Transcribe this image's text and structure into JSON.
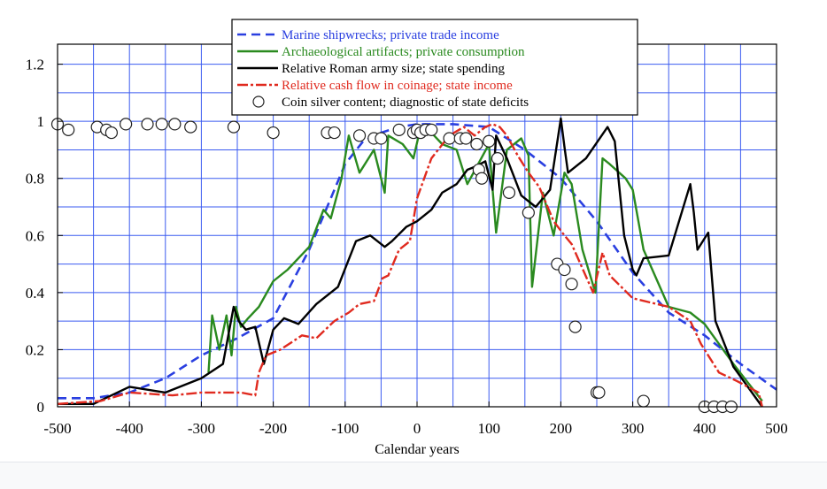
{
  "chart_data": {
    "type": "line",
    "xlabel": "Calendar years",
    "ylabel": "",
    "xlim": [
      -500,
      500
    ],
    "ylim": [
      0,
      1.27
    ],
    "x_ticks": [
      -500,
      -400,
      -300,
      -200,
      -100,
      0,
      100,
      200,
      300,
      400,
      500
    ],
    "x_tick_labels": [
      "-500",
      "-400",
      "-300",
      "-200",
      "-100",
      "0",
      "100",
      "200",
      "300",
      "400",
      "500"
    ],
    "y_ticks": [
      0,
      0.2,
      0.4,
      0.6,
      0.8,
      1,
      1.2
    ],
    "y_tick_labels": [
      "0",
      "0.2",
      "0.4",
      "0.6",
      "0.8",
      "1",
      "1.2"
    ],
    "grid": true,
    "legend_position": "top-center",
    "series": [
      {
        "name": "Marine shipwrecks; private trade income",
        "style": "dashed",
        "color": "#2a3fe0",
        "x": [
          -500,
          -450,
          -400,
          -350,
          -300,
          -250,
          -200,
          -150,
          -125,
          -100,
          -75,
          -50,
          -25,
          0,
          25,
          50,
          100,
          150,
          200,
          250,
          300,
          350,
          400,
          450,
          500
        ],
        "y": [
          0.03,
          0.03,
          0.05,
          0.1,
          0.18,
          0.24,
          0.31,
          0.55,
          0.7,
          0.85,
          0.93,
          0.96,
          0.98,
          0.99,
          0.99,
          0.99,
          0.98,
          0.9,
          0.8,
          0.65,
          0.47,
          0.33,
          0.25,
          0.15,
          0.06
        ]
      },
      {
        "name": "Archaeological artifacts; private consumption",
        "style": "solid",
        "color": "#2a8a1f",
        "x": [
          -290,
          -285,
          -275,
          -265,
          -258,
          -252,
          -245,
          -235,
          -220,
          -200,
          -180,
          -150,
          -130,
          -120,
          -105,
          -95,
          -80,
          -60,
          -45,
          -40,
          -20,
          -5,
          5,
          20,
          35,
          55,
          70,
          100,
          110,
          125,
          145,
          155,
          160,
          175,
          190,
          205,
          215,
          230,
          248,
          258,
          268,
          290,
          300,
          315,
          350,
          380,
          400,
          440,
          480
        ],
        "y": [
          0.12,
          0.32,
          0.2,
          0.32,
          0.18,
          0.35,
          0.28,
          0.31,
          0.35,
          0.44,
          0.48,
          0.56,
          0.69,
          0.66,
          0.8,
          0.95,
          0.82,
          0.9,
          0.75,
          0.95,
          0.92,
          0.87,
          0.98,
          0.96,
          0.92,
          0.9,
          0.78,
          0.92,
          0.61,
          0.9,
          0.94,
          0.88,
          0.42,
          0.75,
          0.6,
          0.82,
          0.78,
          0.55,
          0.4,
          0.87,
          0.85,
          0.8,
          0.76,
          0.55,
          0.35,
          0.33,
          0.29,
          0.15,
          0.02
        ]
      },
      {
        "name": "Relative Roman army size; state spending",
        "style": "solid",
        "color": "#000000",
        "x": [
          -500,
          -450,
          -400,
          -350,
          -300,
          -270,
          -255,
          -248,
          -238,
          -225,
          -213,
          -200,
          -185,
          -165,
          -140,
          -110,
          -85,
          -65,
          -45,
          -35,
          -15,
          0,
          20,
          35,
          55,
          70,
          80,
          95,
          105,
          110,
          125,
          145,
          165,
          185,
          200,
          205,
          210,
          235,
          265,
          275,
          288,
          300,
          305,
          315,
          350,
          380,
          385,
          390,
          400,
          405,
          415,
          440,
          480
        ],
        "y": [
          0.01,
          0.01,
          0.07,
          0.05,
          0.1,
          0.15,
          0.35,
          0.3,
          0.27,
          0.28,
          0.15,
          0.27,
          0.31,
          0.29,
          0.36,
          0.42,
          0.58,
          0.6,
          0.56,
          0.58,
          0.63,
          0.65,
          0.69,
          0.75,
          0.78,
          0.83,
          0.84,
          0.86,
          0.76,
          0.95,
          0.87,
          0.74,
          0.7,
          0.76,
          1.01,
          0.91,
          0.82,
          0.87,
          0.98,
          0.93,
          0.6,
          0.48,
          0.46,
          0.52,
          0.53,
          0.78,
          0.68,
          0.55,
          0.59,
          0.61,
          0.3,
          0.14,
          0.0
        ]
      },
      {
        "name": "Relative cash flow in coinage; state income",
        "style": "dash-dot",
        "color": "#e02a1f",
        "x": [
          -500,
          -440,
          -400,
          -340,
          -300,
          -270,
          -245,
          -225,
          -220,
          -210,
          -190,
          -160,
          -140,
          -115,
          -95,
          -80,
          -60,
          -48,
          -40,
          -25,
          -10,
          0,
          20,
          45,
          65,
          80,
          95,
          105,
          115,
          125,
          140,
          155,
          170,
          190,
          205,
          215,
          245,
          258,
          268,
          280,
          300,
          350,
          380,
          395,
          420,
          445,
          475,
          480
        ],
        "y": [
          0.01,
          0.02,
          0.05,
          0.04,
          0.05,
          0.05,
          0.05,
          0.04,
          0.12,
          0.18,
          0.2,
          0.25,
          0.24,
          0.3,
          0.33,
          0.36,
          0.37,
          0.45,
          0.46,
          0.55,
          0.58,
          0.73,
          0.87,
          0.95,
          0.98,
          0.95,
          0.98,
          0.99,
          0.98,
          0.95,
          0.88,
          0.82,
          0.77,
          0.65,
          0.6,
          0.57,
          0.4,
          0.54,
          0.46,
          0.43,
          0.38,
          0.35,
          0.3,
          0.22,
          0.12,
          0.09,
          0.05,
          0.0
        ]
      }
    ],
    "points": {
      "name": "Coin silver content; diagnostic of state deficits",
      "marker": "open-circle",
      "x": [
        -500,
        -485,
        -445,
        -432,
        -425,
        -405,
        -375,
        -355,
        -337,
        -315,
        -255,
        -200,
        -125,
        -115,
        -80,
        -60,
        -50,
        -25,
        -5,
        0,
        5,
        12,
        20,
        45,
        60,
        68,
        83,
        86,
        90,
        100,
        112,
        128,
        155,
        195,
        205,
        215,
        220,
        250,
        253,
        315,
        400,
        413,
        425,
        437
      ],
      "y": [
        0.99,
        0.97,
        0.98,
        0.97,
        0.96,
        0.99,
        0.99,
        0.99,
        0.99,
        0.98,
        0.98,
        0.96,
        0.96,
        0.96,
        0.95,
        0.94,
        0.94,
        0.97,
        0.96,
        0.97,
        0.96,
        0.97,
        0.97,
        0.94,
        0.94,
        0.94,
        0.92,
        0.83,
        0.8,
        0.93,
        0.87,
        0.75,
        0.68,
        0.5,
        0.48,
        0.43,
        0.28,
        0.05,
        0.05,
        0.02,
        0.0,
        0.0,
        0.0,
        0.0
      ]
    },
    "colors": {
      "grid": "#3b5bf0",
      "axis": "#000000",
      "shipwrecks": "#2a3fe0",
      "artifacts": "#2a8a1f",
      "army": "#000000",
      "coinage": "#e02a1f"
    }
  }
}
